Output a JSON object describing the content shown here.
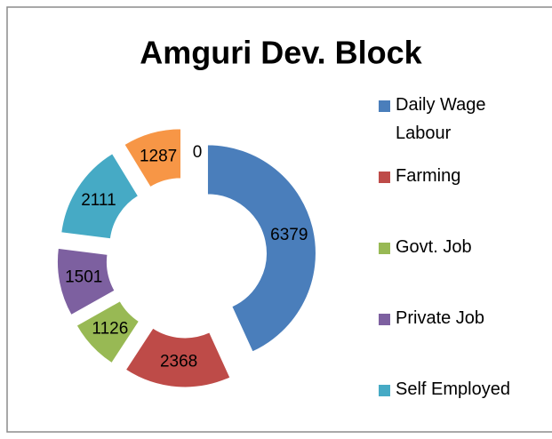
{
  "chart_data": {
    "type": "donut",
    "title": "Amguri Dev. Block",
    "categories": [
      "Daily Wage Labour",
      "Farming",
      "Govt. Job",
      "Private Job",
      "Self Employed",
      null,
      null
    ],
    "values": [
      6379,
      2368,
      1126,
      1501,
      2111,
      1287,
      0
    ],
    "colors": [
      "#4a7ebb",
      "#be4b48",
      "#98b954",
      "#7d60a0",
      "#46aac5",
      "#f79646",
      "#4f81bd"
    ],
    "legend_position": "right"
  }
}
